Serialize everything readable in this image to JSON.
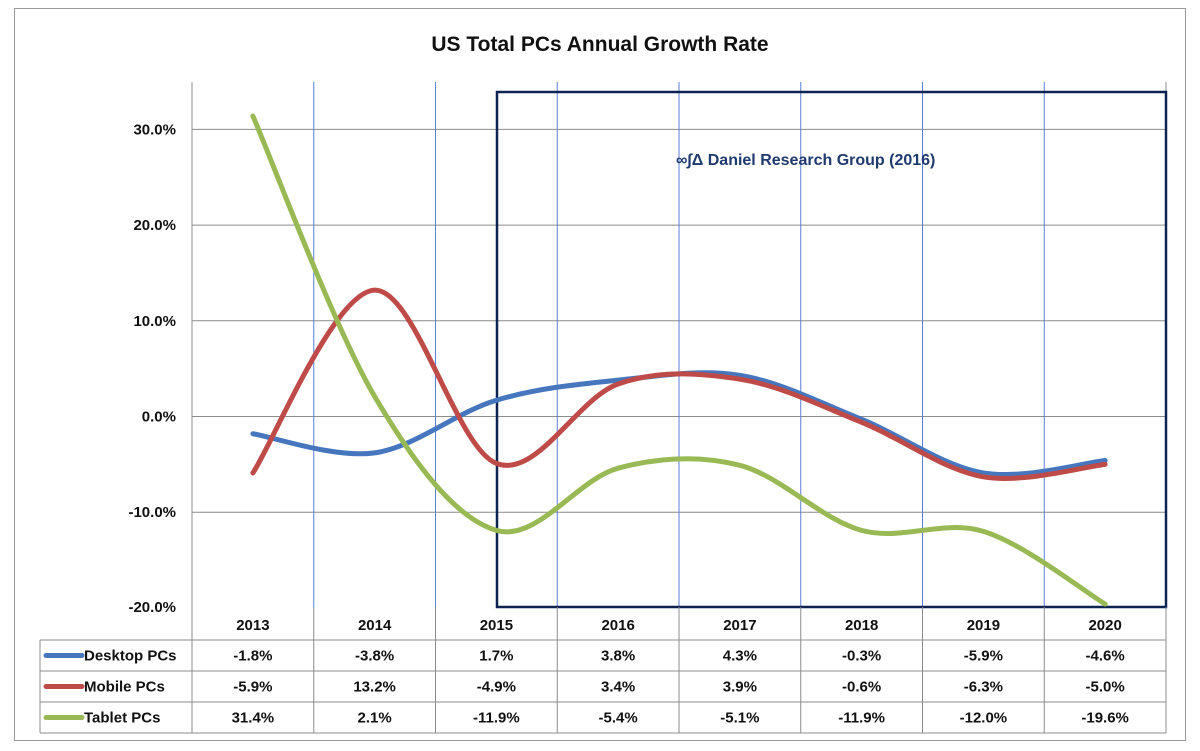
{
  "chart_data": {
    "type": "line",
    "title": "US Total PCs Annual Growth Rate",
    "categories": [
      "2013",
      "2014",
      "2015",
      "2016",
      "2017",
      "2018",
      "2019",
      "2020"
    ],
    "y_ticks": [
      "30.0%",
      "20.0%",
      "10.0%",
      "0.0%",
      "-10.0%",
      "-20.0%"
    ],
    "ylim": [
      -20,
      35
    ],
    "series": [
      {
        "name": "Desktop PCs",
        "color": "#4677be",
        "values": [
          -1.8,
          -3.8,
          1.7,
          3.8,
          4.3,
          -0.3,
          -5.9,
          -4.6
        ],
        "labels": [
          "-1.8%",
          "-3.8%",
          "1.7%",
          "3.8%",
          "4.3%",
          "-0.3%",
          "-5.9%",
          "-4.6%"
        ]
      },
      {
        "name": "Mobile PCs",
        "color": "#be4b48",
        "values": [
          -5.9,
          13.2,
          -4.9,
          3.4,
          3.9,
          -0.6,
          -6.3,
          -5.0
        ],
        "labels": [
          "-5.9%",
          "13.2%",
          "-4.9%",
          "3.4%",
          "3.9%",
          "-0.6%",
          "-6.3%",
          "-5.0%"
        ]
      },
      {
        "name": "Tablet PCs",
        "color": "#98b954",
        "values": [
          31.4,
          2.1,
          -11.9,
          -5.4,
          -5.1,
          -11.9,
          -12.0,
          -19.6
        ],
        "labels": [
          "31.4%",
          "2.1%",
          "-11.9%",
          "-5.4%",
          "-5.1%",
          "-11.9%",
          "-12.0%",
          "-19.6%"
        ]
      }
    ],
    "annotation": "∞∫Δ Daniel Research Group (2016)",
    "grid": true,
    "legend": "data-table"
  }
}
